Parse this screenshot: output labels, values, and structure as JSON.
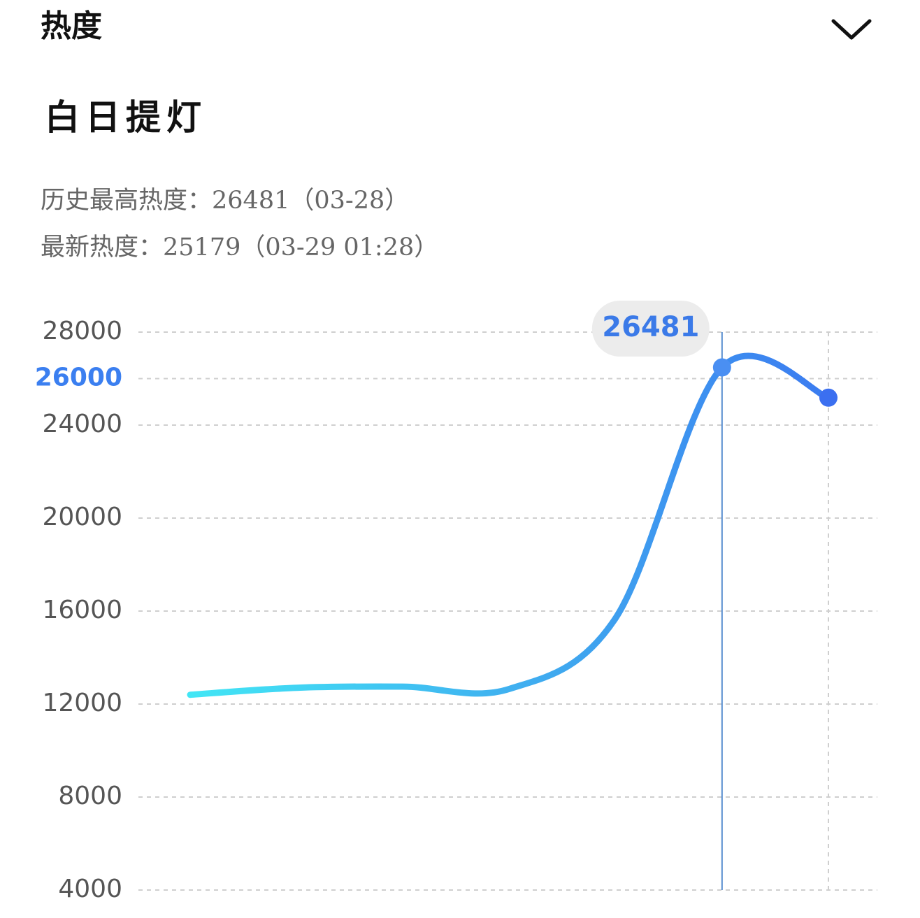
{
  "header": {
    "title": "热度"
  },
  "song_title": "白日提灯",
  "stats": [
    {
      "label": "历史最高热度：",
      "value": 26481,
      "date": "（03-28）"
    },
    {
      "label": "最新热度：",
      "value": 25179,
      "date": "（03-29 01:28）"
    }
  ],
  "chart_data": {
    "type": "line",
    "categories": [
      null,
      null,
      null,
      null,
      null,
      null,
      null
    ],
    "values": [
      12400,
      12700,
      12750,
      12650,
      15700,
      26481,
      25179
    ],
    "color": "#3b7ff0",
    "ylim": [
      4000,
      28000
    ],
    "yticks": [
      4000,
      8000,
      12000,
      16000,
      20000,
      24000,
      26000,
      28000
    ],
    "grid": true
  }
}
